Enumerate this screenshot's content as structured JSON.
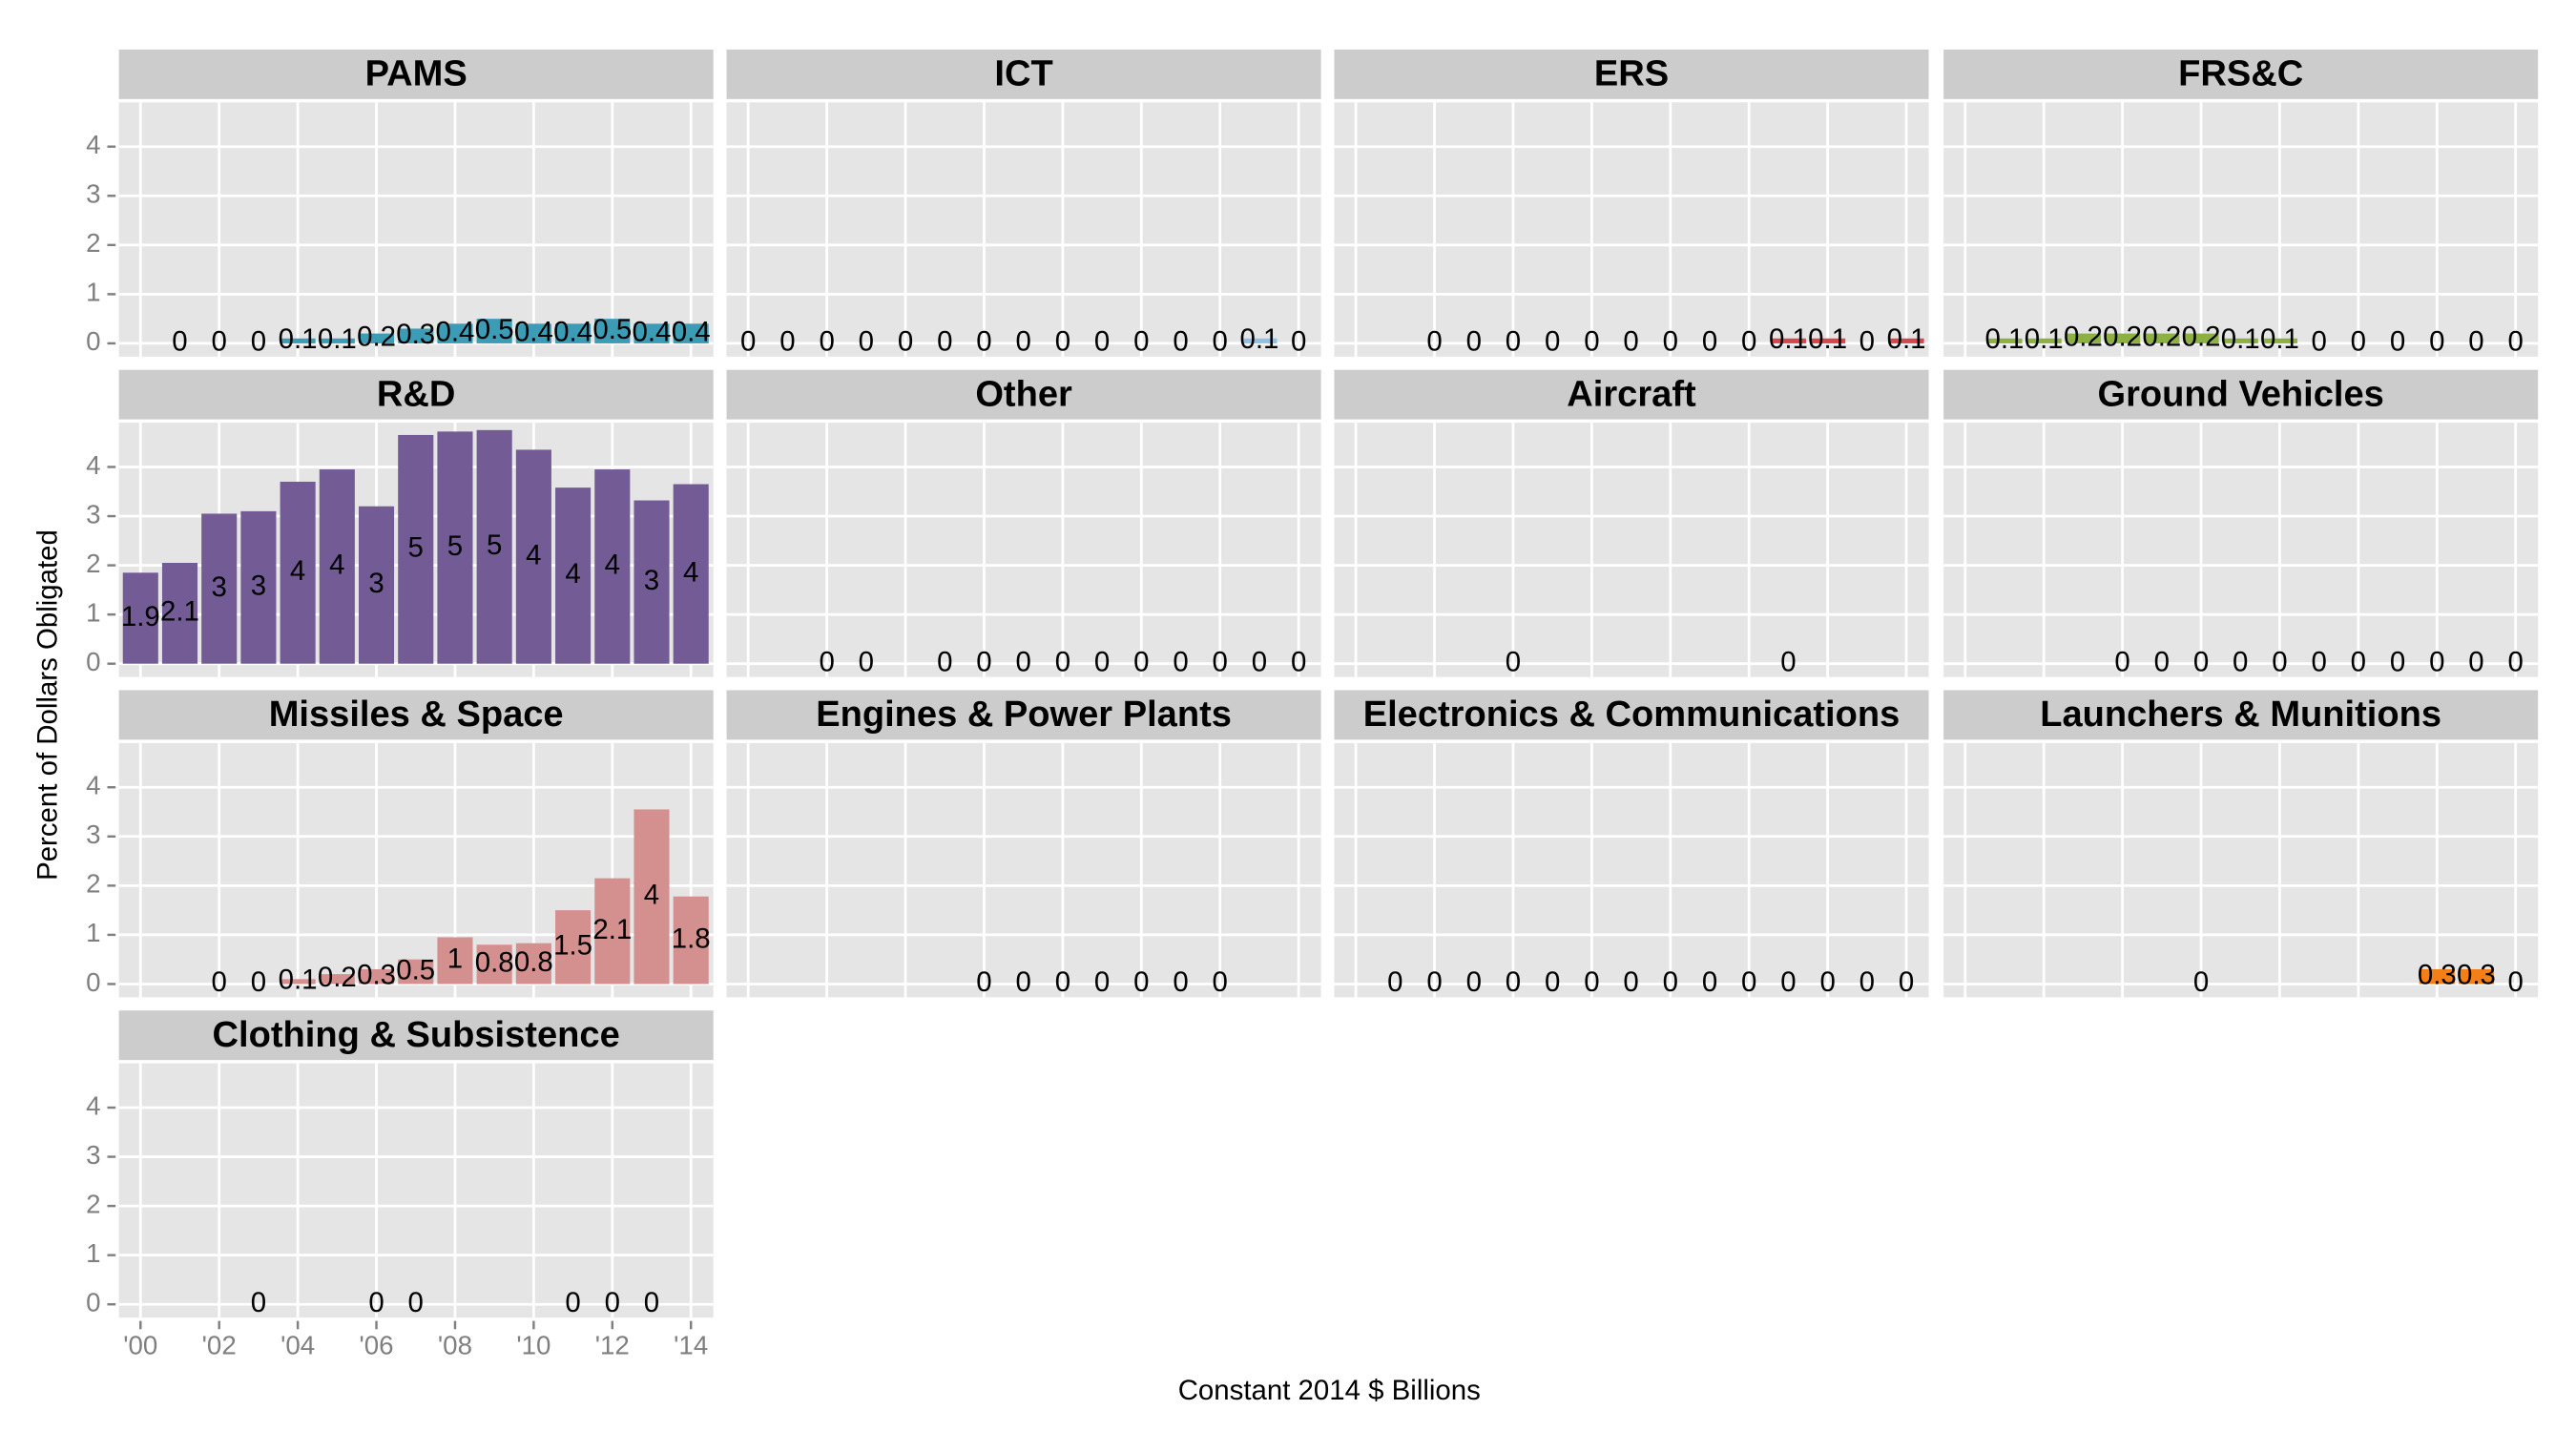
{
  "chart_data": {
    "type": "bar",
    "xlabel": "Constant 2014 $ Billions",
    "ylabel": "Percent of Dollars Obligated",
    "xlim": [
      1999.45,
      2014.57
    ],
    "xticks": [
      {
        "value": 2000,
        "label": "'00"
      },
      {
        "value": 2002,
        "label": "'02"
      },
      {
        "value": 2004,
        "label": "'04"
      },
      {
        "value": 2006,
        "label": "'06"
      },
      {
        "value": 2008,
        "label": "'08"
      },
      {
        "value": 2010,
        "label": "'10"
      },
      {
        "value": 2012,
        "label": "'12"
      },
      {
        "value": 2014,
        "label": "'14"
      }
    ],
    "ylim": [
      -0.27,
      4.9
    ],
    "yticks": [
      0,
      1,
      2,
      3,
      4
    ],
    "grid": true,
    "panels": [
      {
        "title": "PAMS",
        "color": "#3d9cb5",
        "x": [
          2001,
          2002,
          2003,
          2004,
          2005,
          2006,
          2007,
          2008,
          2009,
          2010,
          2011,
          2012,
          2013,
          2014
        ],
        "values": [
          0,
          0,
          0,
          0.1,
          0.1,
          0.2,
          0.3,
          0.4,
          0.5,
          0.4,
          0.4,
          0.5,
          0.4,
          0.4
        ],
        "value_labels": [
          "0",
          "0",
          "0",
          "0.1",
          "0.1",
          "0.2",
          "0.3",
          "0.4",
          "0.5",
          "0.4",
          "0.4",
          "0.5",
          "0.4",
          "0.4"
        ]
      },
      {
        "title": "ICT",
        "color": "#8fc1e3",
        "x": [
          2000,
          2001,
          2002,
          2003,
          2004,
          2005,
          2006,
          2007,
          2008,
          2009,
          2010,
          2011,
          2012,
          2013,
          2014
        ],
        "values": [
          0,
          0,
          0,
          0,
          0,
          0,
          0,
          0,
          0,
          0,
          0,
          0,
          0,
          0.1,
          0
        ],
        "value_labels": [
          "0",
          "0",
          "0",
          "0",
          "0",
          "0",
          "0",
          "0",
          "0",
          "0",
          "0",
          "0",
          "0",
          "0.1",
          "0"
        ]
      },
      {
        "title": "ERS",
        "color": "#d7474a",
        "x": [
          2002,
          2003,
          2004,
          2005,
          2006,
          2007,
          2008,
          2009,
          2010,
          2011,
          2012,
          2013,
          2014
        ],
        "values": [
          0,
          0,
          0,
          0,
          0,
          0,
          0,
          0,
          0,
          0.1,
          0.1,
          0,
          0.1
        ],
        "value_labels": [
          "0",
          "0",
          "0",
          "0",
          "0",
          "0",
          "0",
          "0",
          "0",
          "0.1",
          "0.1",
          "0",
          "0.1"
        ]
      },
      {
        "title": "FRS&C",
        "color": "#8db043",
        "x": [
          2001,
          2002,
          2003,
          2004,
          2005,
          2006,
          2007,
          2008,
          2009,
          2010,
          2011,
          2012,
          2013,
          2014
        ],
        "values": [
          0.1,
          0.1,
          0.2,
          0.2,
          0.2,
          0.2,
          0.1,
          0.1,
          0,
          0,
          0,
          0,
          0,
          0
        ],
        "value_labels": [
          "0.1",
          "0.1",
          "0.2",
          "0.2",
          "0.2",
          "0.2",
          "0.1",
          "0.1",
          "0",
          "0",
          "0",
          "0",
          "0",
          "0"
        ]
      },
      {
        "title": "R&D",
        "color": "#735b96",
        "x": [
          2000,
          2001,
          2002,
          2003,
          2004,
          2005,
          2006,
          2007,
          2008,
          2009,
          2010,
          2011,
          2012,
          2013,
          2014
        ],
        "values": [
          1.85,
          2.05,
          3.05,
          3.1,
          3.7,
          3.95,
          3.2,
          4.65,
          4.72,
          4.75,
          4.35,
          3.58,
          3.95,
          3.32,
          3.65
        ],
        "value_labels": [
          "1.9",
          "2.1",
          "3",
          "3",
          "4",
          "4",
          "3",
          "5",
          "5",
          "5",
          "4",
          "4",
          "4",
          "3",
          "4"
        ]
      },
      {
        "title": "Other",
        "color": "#999999",
        "x": [
          2002,
          2003,
          2005,
          2006,
          2007,
          2008,
          2009,
          2010,
          2011,
          2012,
          2013,
          2014
        ],
        "values": [
          0,
          0,
          0,
          0,
          0,
          0,
          0,
          0,
          0,
          0,
          0,
          0
        ],
        "value_labels": [
          "0",
          "0",
          "0",
          "0",
          "0",
          "0",
          "0",
          "0",
          "0",
          "0",
          "0",
          "0"
        ]
      },
      {
        "title": "Aircraft",
        "color": "#999999",
        "x": [
          2004,
          2011
        ],
        "values": [
          0,
          0
        ],
        "value_labels": [
          "0",
          "0"
        ]
      },
      {
        "title": "Ground Vehicles",
        "color": "#999999",
        "x": [
          2004,
          2005,
          2006,
          2007,
          2008,
          2009,
          2010,
          2011,
          2012,
          2013,
          2014
        ],
        "values": [
          0,
          0,
          0,
          0,
          0,
          0,
          0,
          0,
          0,
          0,
          0
        ],
        "value_labels": [
          "0",
          "0",
          "0",
          "0",
          "0",
          "0",
          "0",
          "0",
          "0",
          "0",
          "0"
        ]
      },
      {
        "title": "Missiles & Space",
        "color": "#d4908f",
        "x": [
          2002,
          2003,
          2004,
          2005,
          2006,
          2007,
          2008,
          2009,
          2010,
          2011,
          2012,
          2013,
          2014
        ],
        "values": [
          0,
          0,
          0.1,
          0.2,
          0.3,
          0.5,
          0.95,
          0.8,
          0.83,
          1.5,
          2.15,
          3.55,
          1.78
        ],
        "value_labels": [
          "0",
          "0",
          "0.1",
          "0.2",
          "0.3",
          "0.5",
          "1",
          "0.8",
          "0.8",
          "1.5",
          "2.1",
          "4",
          "1.8"
        ]
      },
      {
        "title": "Engines & Power Plants",
        "color": "#999999",
        "x": [
          2006,
          2007,
          2008,
          2009,
          2010,
          2011,
          2012
        ],
        "values": [
          0,
          0,
          0,
          0,
          0,
          0,
          0
        ],
        "value_labels": [
          "0",
          "0",
          "0",
          "0",
          "0",
          "0",
          "0"
        ]
      },
      {
        "title": "Electronics & Communications",
        "color": "#8fc1e3",
        "x": [
          2001,
          2002,
          2003,
          2004,
          2005,
          2006,
          2007,
          2008,
          2009,
          2010,
          2011,
          2012,
          2013,
          2014
        ],
        "values": [
          0,
          0,
          0,
          0,
          0,
          0,
          0,
          0,
          0,
          0,
          0,
          0,
          0,
          0
        ],
        "value_labels": [
          "0",
          "0",
          "0",
          "0",
          "0",
          "0",
          "0",
          "0",
          "0",
          "0",
          "0",
          "0",
          "0",
          "0"
        ]
      },
      {
        "title": "Launchers & Munitions",
        "color": "#f57f17",
        "x": [
          2006,
          2012,
          2013,
          2014
        ],
        "values": [
          0,
          0.3,
          0.3,
          0
        ],
        "value_labels": [
          "0",
          "0.3",
          "0.3",
          "0"
        ]
      },
      {
        "title": "Clothing & Subsistence",
        "color": "#999999",
        "x": [
          2003,
          2006,
          2007,
          2011,
          2012,
          2013
        ],
        "values": [
          0,
          0,
          0,
          0,
          0,
          0
        ],
        "value_labels": [
          "0",
          "0",
          "0",
          "0",
          "0",
          "0"
        ]
      }
    ]
  }
}
